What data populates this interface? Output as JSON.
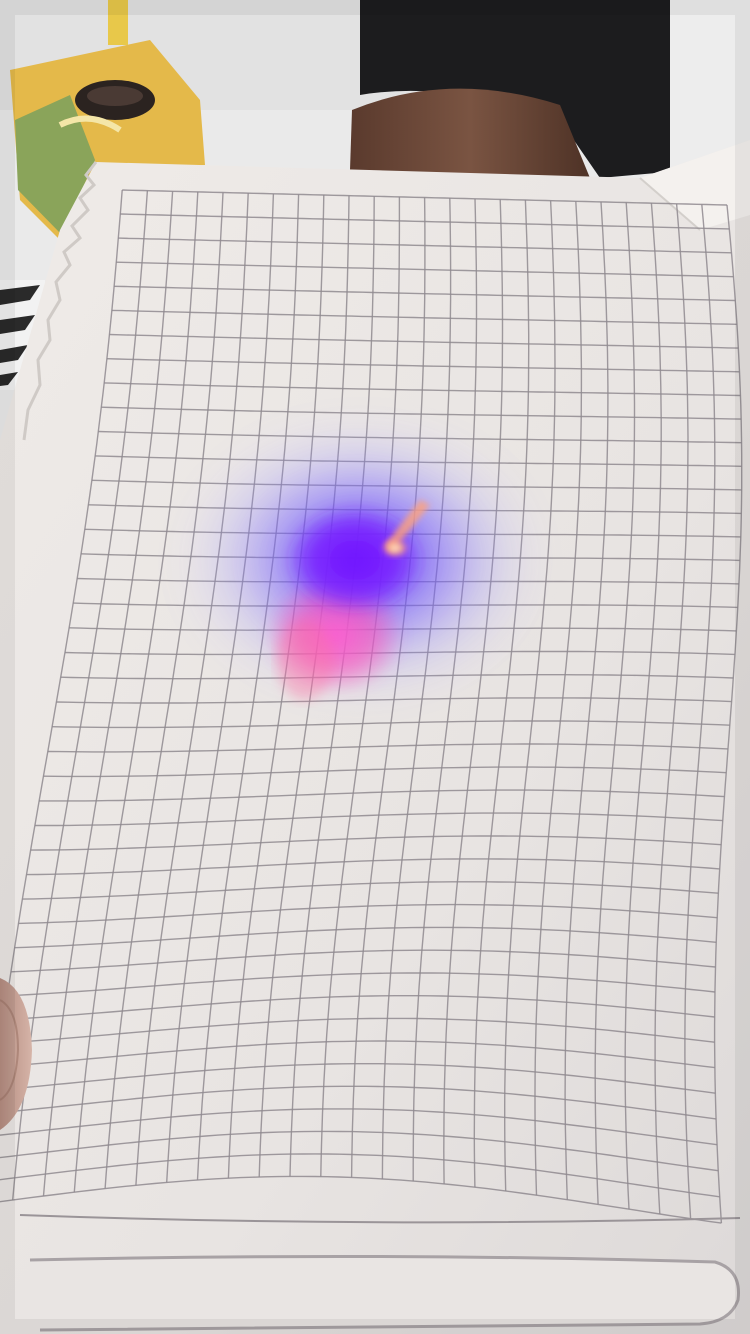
{
  "scene": {
    "subject": "notebook-page",
    "elements": [
      "wall-background",
      "snack-package",
      "sleeve",
      "forearm",
      "notebook-page",
      "grid-lines",
      "laser-light-spot",
      "footer-label-box",
      "thumb"
    ]
  },
  "colors": {
    "wall": "#ececec",
    "paper": "#ece8e5",
    "grid_line": "#8f8a8f",
    "sleeve": "#1d1d1f",
    "skin": "#6e4a3a",
    "spot_core": "#7a18ff",
    "spot_glow": "#5a3dff",
    "spot_pink": "#ff4fc8",
    "spot_hot": "#ffb07a",
    "thumb": "#c7a396",
    "package_green": "#8aa45a",
    "package_yellow": "#e4b94a",
    "spiral": "#2a2a2a"
  }
}
